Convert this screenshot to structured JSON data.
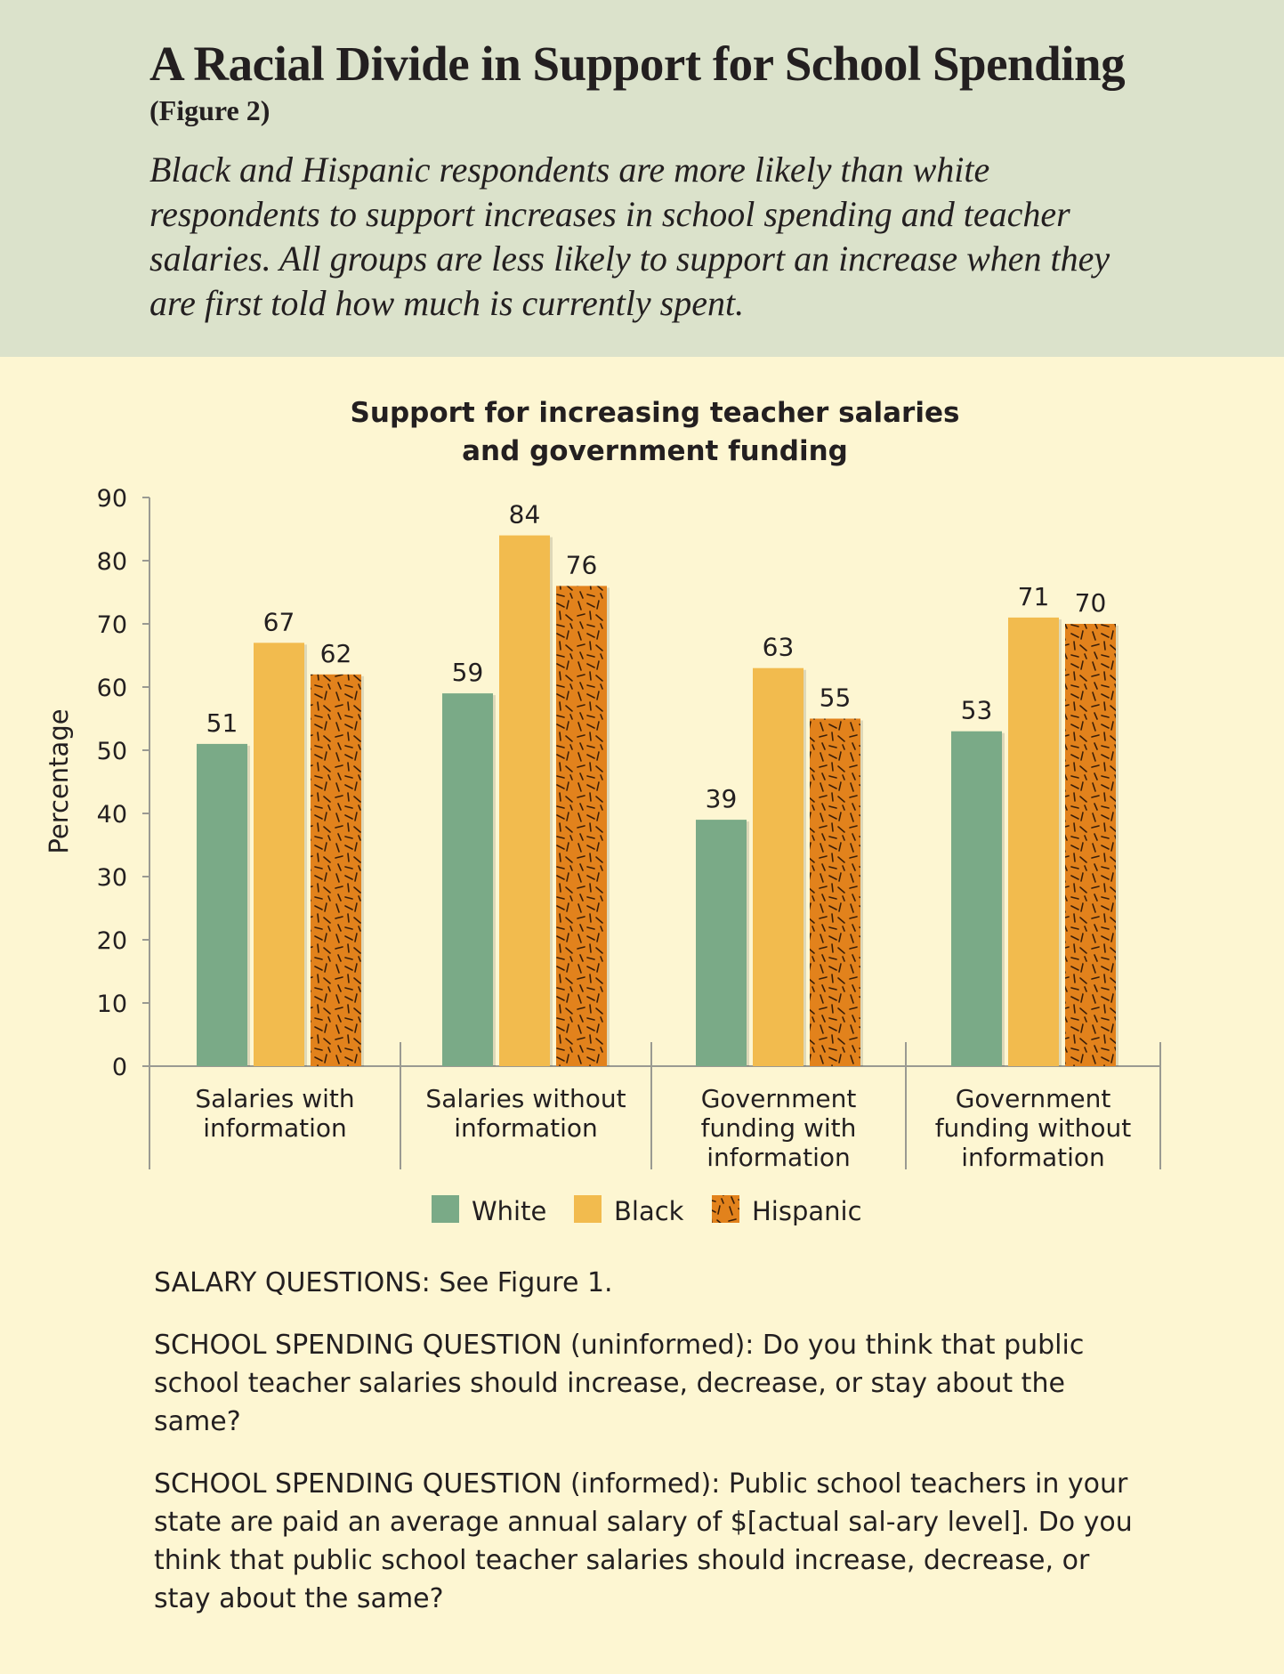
{
  "header": {
    "title": "A Racial Divide in Support for School Spending",
    "figure_label": "(Figure 2)",
    "subtitle": "Black and Hispanic respondents are more likely than white respondents to support increases in school spending and teacher salaries. All groups are less likely to support an increase when they are first told how much is currently spent."
  },
  "chart_data": {
    "type": "bar",
    "title_lines": [
      "Support for increasing teacher salaries",
      "and government funding"
    ],
    "ylabel": "Percentage",
    "ylim": [
      0,
      90
    ],
    "yticks": [
      0,
      10,
      20,
      30,
      40,
      50,
      60,
      70,
      80,
      90
    ],
    "categories": [
      [
        "Salaries with",
        "information"
      ],
      [
        "Salaries without",
        "information"
      ],
      [
        "Government",
        "funding with",
        "information"
      ],
      [
        "Government",
        "funding without",
        "information"
      ]
    ],
    "series": [
      {
        "name": "White",
        "color": "#7aaa87",
        "pattern": "none",
        "values": [
          51,
          59,
          39,
          53
        ]
      },
      {
        "name": "Black",
        "color": "#f2bb4e",
        "pattern": "none",
        "values": [
          67,
          84,
          63,
          71
        ]
      },
      {
        "name": "Hispanic",
        "color": "#e2821c",
        "pattern": "dashes",
        "values": [
          62,
          76,
          55,
          70
        ]
      }
    ],
    "legend_position": "bottom",
    "grid": false
  },
  "notes": [
    "SALARY QUESTIONS: See Figure 1.",
    "SCHOOL SPENDING QUESTION (uninformed): Do you think that public school teacher salaries should increase, decrease, or stay about the same?",
    "SCHOOL SPENDING QUESTION (informed): Public school teachers in your state are paid an average annual salary of $[actual sal-ary level]. Do you think that public school teacher salaries should increase, decrease, or stay about the same?"
  ]
}
